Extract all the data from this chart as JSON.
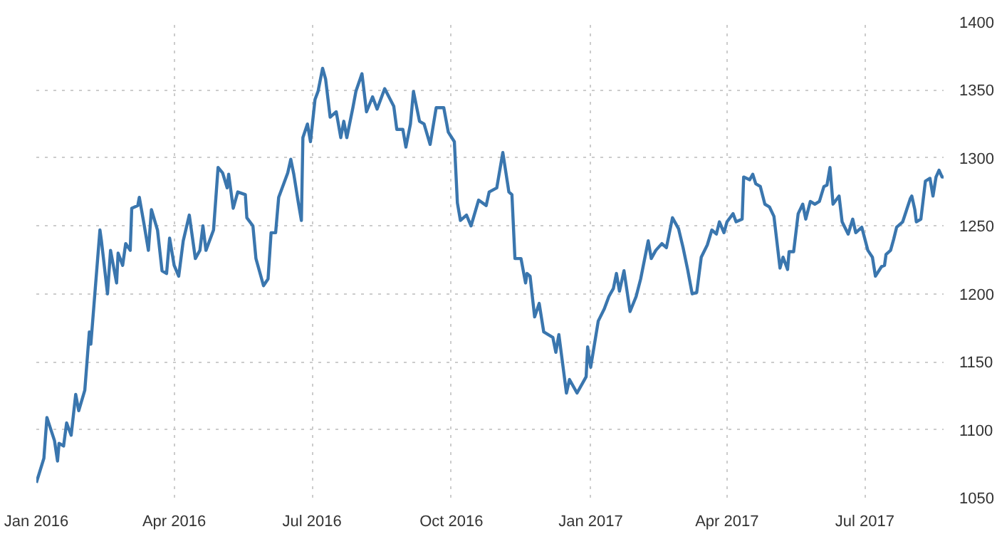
{
  "chart_data": {
    "type": "line",
    "x": [
      "2016-01-01",
      "2016-01-06",
      "2016-01-08",
      "2016-01-13",
      "2016-01-15",
      "2016-01-16",
      "2016-01-19",
      "2016-01-21",
      "2016-01-24",
      "2016-01-27",
      "2016-01-29",
      "2016-02-02",
      "2016-02-05",
      "2016-02-06",
      "2016-02-08",
      "2016-02-12",
      "2016-02-13",
      "2016-02-17",
      "2016-02-19",
      "2016-02-23",
      "2016-02-24",
      "2016-02-27",
      "2016-02-29",
      "2016-03-03",
      "2016-03-04",
      "2016-03-08",
      "2016-03-09",
      "2016-03-12",
      "2016-03-15",
      "2016-03-17",
      "2016-03-21",
      "2016-03-24",
      "2016-03-27",
      "2016-03-29",
      "2016-04-01",
      "2016-04-04",
      "2016-04-07",
      "2016-04-11",
      "2016-04-15",
      "2016-04-18",
      "2016-04-20",
      "2016-04-22",
      "2016-04-27",
      "2016-04-30",
      "2016-05-03",
      "2016-05-06",
      "2016-05-07",
      "2016-05-10",
      "2016-05-13",
      "2016-05-18",
      "2016-05-19",
      "2016-05-23",
      "2016-05-25",
      "2016-05-30",
      "2016-06-02",
      "2016-06-04",
      "2016-06-07",
      "2016-06-09",
      "2016-06-15",
      "2016-06-17",
      "2016-06-19",
      "2016-06-22",
      "2016-06-24",
      "2016-06-25",
      "2016-06-28",
      "2016-06-30",
      "2016-07-03",
      "2016-07-05",
      "2016-07-08",
      "2016-07-10",
      "2016-07-13",
      "2016-07-17",
      "2016-07-20",
      "2016-07-22",
      "2016-07-24",
      "2016-07-28",
      "2016-07-30",
      "2016-08-03",
      "2016-08-06",
      "2016-08-10",
      "2016-08-13",
      "2016-08-18",
      "2016-08-24",
      "2016-08-26",
      "2016-08-30",
      "2016-09-01",
      "2016-09-04",
      "2016-09-06",
      "2016-09-10",
      "2016-09-13",
      "2016-09-17",
      "2016-09-21",
      "2016-09-26",
      "2016-09-29",
      "2016-10-03",
      "2016-10-05",
      "2016-10-07",
      "2016-10-11",
      "2016-10-14",
      "2016-10-19",
      "2016-10-24",
      "2016-10-26",
      "2016-10-31",
      "2016-11-04",
      "2016-11-08",
      "2016-11-10",
      "2016-11-12",
      "2016-11-16",
      "2016-11-19",
      "2016-11-20",
      "2016-11-22",
      "2016-11-25",
      "2016-11-28",
      "2016-12-01",
      "2016-12-07",
      "2016-12-09",
      "2016-12-11",
      "2016-12-16",
      "2016-12-18",
      "2016-12-23",
      "2016-12-29",
      "2016-12-30",
      "2017-01-01",
      "2017-01-06",
      "2017-01-10",
      "2017-01-13",
      "2017-01-16",
      "2017-01-18",
      "2017-01-20",
      "2017-01-23",
      "2017-01-27",
      "2017-01-31",
      "2017-02-03",
      "2017-02-08",
      "2017-02-10",
      "2017-02-13",
      "2017-02-17",
      "2017-02-20",
      "2017-02-24",
      "2017-02-28",
      "2017-03-03",
      "2017-03-06",
      "2017-03-09",
      "2017-03-12",
      "2017-03-15",
      "2017-03-19",
      "2017-03-22",
      "2017-03-25",
      "2017-03-27",
      "2017-03-30",
      "2017-04-01",
      "2017-04-05",
      "2017-04-07",
      "2017-04-11",
      "2017-04-12",
      "2017-04-16",
      "2017-04-18",
      "2017-04-20",
      "2017-04-23",
      "2017-04-26",
      "2017-04-29",
      "2017-05-02",
      "2017-05-06",
      "2017-05-08",
      "2017-05-11",
      "2017-05-12",
      "2017-05-15",
      "2017-05-18",
      "2017-05-21",
      "2017-05-23",
      "2017-05-26",
      "2017-05-29",
      "2017-06-01",
      "2017-06-04",
      "2017-06-06",
      "2017-06-08",
      "2017-06-10",
      "2017-06-14",
      "2017-06-16",
      "2017-06-20",
      "2017-06-23",
      "2017-06-25",
      "2017-06-29",
      "2017-07-03",
      "2017-07-06",
      "2017-07-08",
      "2017-07-12",
      "2017-07-14",
      "2017-07-15",
      "2017-07-18",
      "2017-07-20",
      "2017-07-22",
      "2017-07-26",
      "2017-07-31",
      "2017-08-01",
      "2017-08-03",
      "2017-08-04",
      "2017-08-07",
      "2017-08-10",
      "2017-08-13",
      "2017-08-15",
      "2017-08-17",
      "2017-08-19",
      "2017-08-21",
      "2017-08-22"
    ],
    "series": [
      {
        "color": "#3a76ae",
        "values": [
          1061,
          1079,
          1109,
          1092,
          1077,
          1090,
          1088,
          1105,
          1096,
          1126,
          1114,
          1129,
          1172,
          1163,
          1191,
          1247,
          1239,
          1200,
          1232,
          1208,
          1230,
          1221,
          1237,
          1232,
          1263,
          1265,
          1271,
          1252,
          1232,
          1262,
          1247,
          1217,
          1215,
          1241,
          1221,
          1213,
          1239,
          1258,
          1226,
          1232,
          1250,
          1232,
          1247,
          1293,
          1289,
          1278,
          1288,
          1263,
          1275,
          1273,
          1256,
          1250,
          1226,
          1206,
          1211,
          1245,
          1245,
          1271,
          1289,
          1299,
          1288,
          1267,
          1254,
          1315,
          1325,
          1312,
          1343,
          1349,
          1366,
          1358,
          1330,
          1334,
          1315,
          1327,
          1315,
          1337,
          1349,
          1362,
          1334,
          1345,
          1336,
          1351,
          1338,
          1321,
          1321,
          1308,
          1325,
          1349,
          1327,
          1325,
          1310,
          1337,
          1337,
          1319,
          1312,
          1267,
          1254,
          1258,
          1250,
          1269,
          1265,
          1275,
          1278,
          1304,
          1275,
          1273,
          1226,
          1226,
          1208,
          1215,
          1213,
          1183,
          1193,
          1172,
          1168,
          1157,
          1170,
          1127,
          1137,
          1127,
          1139,
          1161,
          1146,
          1180,
          1189,
          1198,
          1204,
          1215,
          1202,
          1217,
          1187,
          1198,
          1211,
          1239,
          1226,
          1232,
          1237,
          1234,
          1256,
          1248,
          1234,
          1218,
          1200,
          1201,
          1227,
          1236,
          1247,
          1244,
          1253,
          1245,
          1253,
          1259,
          1253,
          1255,
          1286,
          1284,
          1288,
          1281,
          1279,
          1266,
          1264,
          1257,
          1219,
          1227,
          1218,
          1231,
          1231,
          1259,
          1266,
          1255,
          1268,
          1266,
          1268,
          1279,
          1280,
          1293,
          1266,
          1272,
          1253,
          1244,
          1255,
          1245,
          1249,
          1232,
          1227,
          1213,
          1220,
          1221,
          1229,
          1232,
          1240,
          1249,
          1253,
          1270,
          1272,
          1262,
          1253,
          1255,
          1283,
          1285,
          1272,
          1286,
          1291,
          1286,
          1286
        ]
      }
    ],
    "xlim": [
      "2016-01-01",
      "2017-08-22"
    ],
    "xticks": [
      {
        "value": "2016-01-01",
        "label": "Jan 2016"
      },
      {
        "value": "2016-04-01",
        "label": "Apr 2016"
      },
      {
        "value": "2016-07-01",
        "label": "Jul 2016"
      },
      {
        "value": "2016-10-01",
        "label": "Oct 2016"
      },
      {
        "value": "2017-01-01",
        "label": "Jan 2017"
      },
      {
        "value": "2017-04-01",
        "label": "Apr 2017"
      },
      {
        "value": "2017-07-01",
        "label": "Jul 2017"
      }
    ],
    "ylim": [
      1050,
      1400
    ],
    "yticks": [
      1050,
      1100,
      1150,
      1200,
      1250,
      1300,
      1350,
      1400
    ],
    "grid": true
  }
}
